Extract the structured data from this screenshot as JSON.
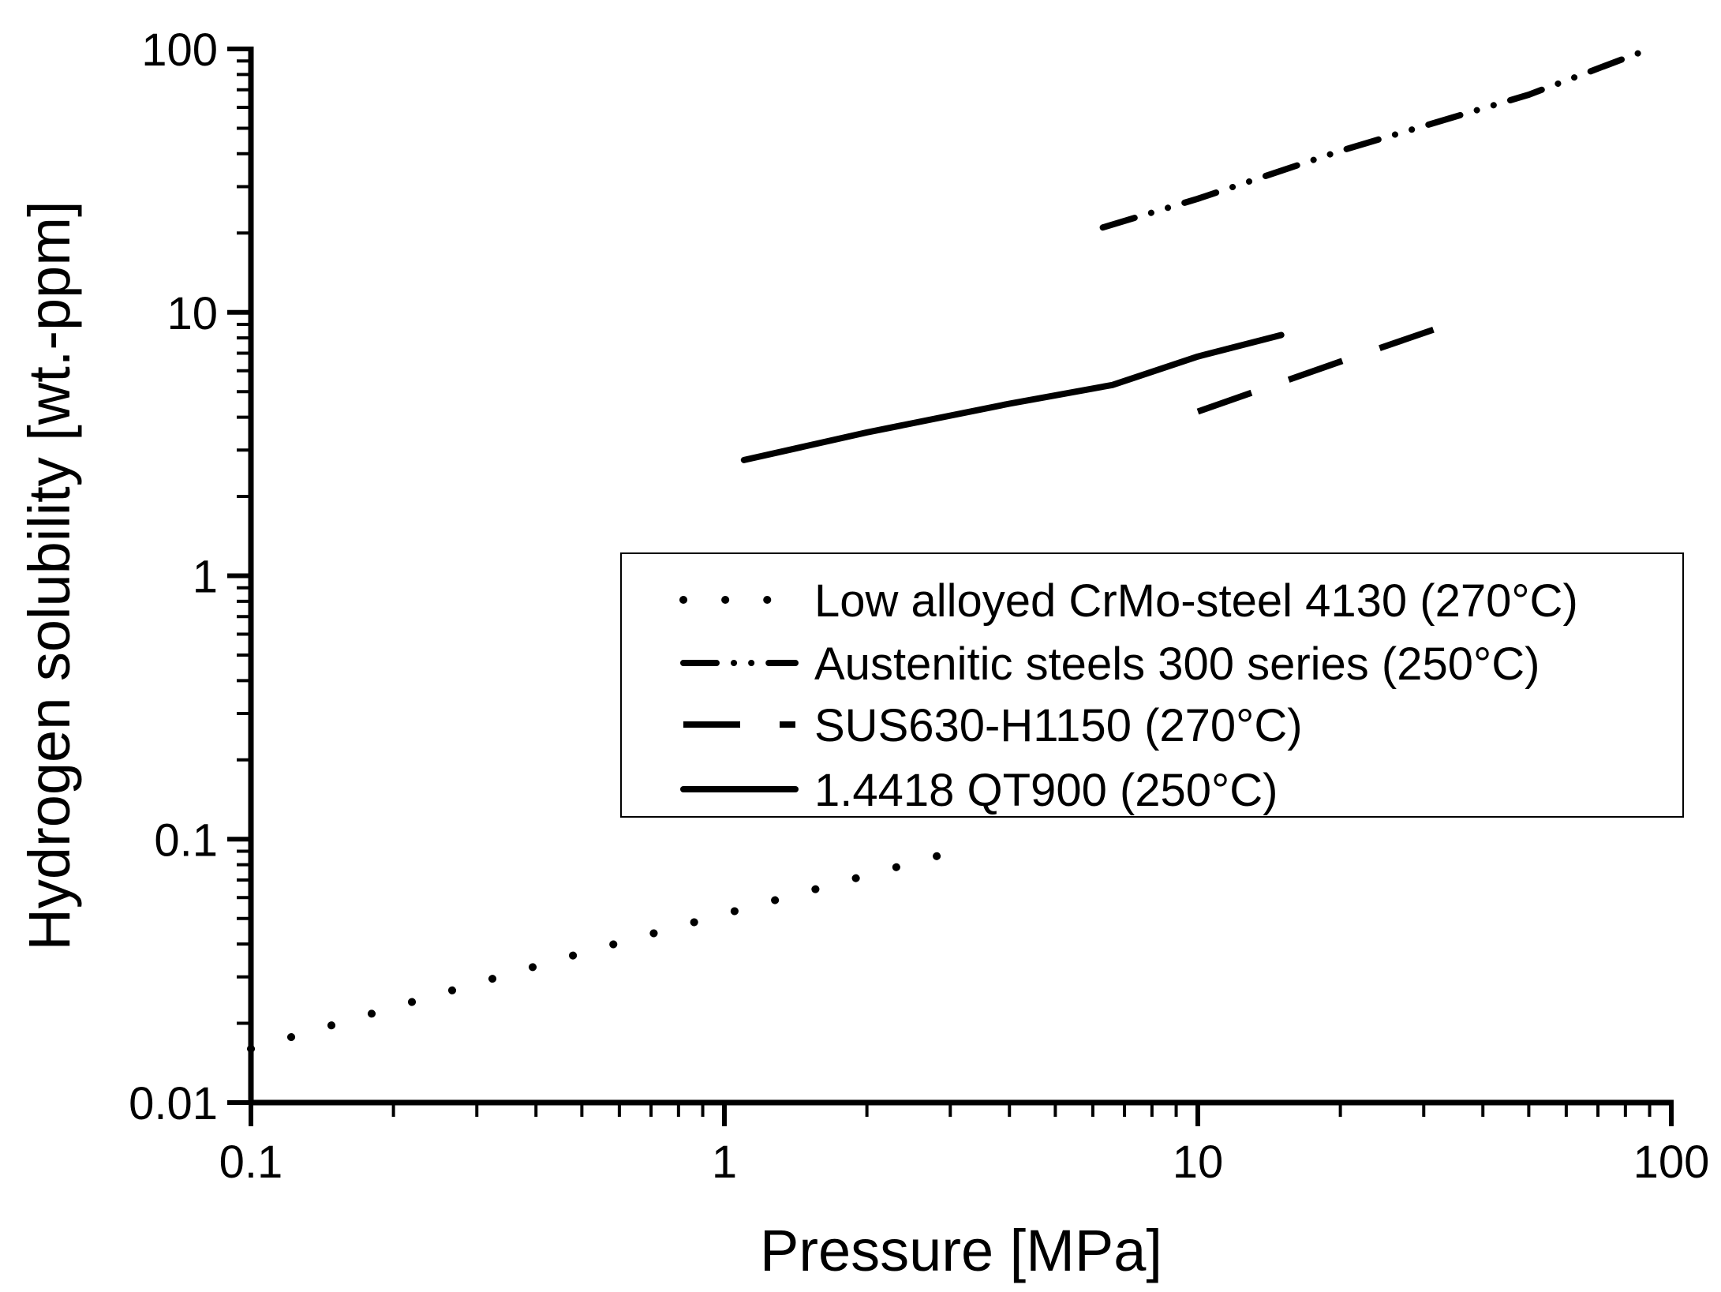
{
  "chart_data": {
    "type": "line",
    "title": "",
    "xlabel": "Pressure [MPa]",
    "ylabel": "Hydrogen solubility [wt.-ppm]",
    "xscale": "log",
    "yscale": "log",
    "xlim": [
      0.1,
      100
    ],
    "ylim": [
      0.01,
      100
    ],
    "x_ticks": [
      {
        "value": 0.1,
        "label": "0.1"
      },
      {
        "value": 1,
        "label": "1"
      },
      {
        "value": 10,
        "label": "10"
      },
      {
        "value": 100,
        "label": "100"
      }
    ],
    "y_ticks": [
      {
        "value": 0.01,
        "label": "0.01"
      },
      {
        "value": 0.1,
        "label": "0.1"
      },
      {
        "value": 1,
        "label": "1"
      },
      {
        "value": 10,
        "label": "10"
      },
      {
        "value": 100,
        "label": "100"
      }
    ],
    "grid": false,
    "legend_position": "center-right",
    "series": [
      {
        "name": "Low alloyed CrMo-steel 4130 (270°C)",
        "style": "dotted",
        "x": [
          0.1,
          0.2,
          0.5,
          1,
          2,
          3
        ],
        "y": [
          0.016,
          0.023,
          0.037,
          0.052,
          0.073,
          0.089
        ]
      },
      {
        "name": "Austenitic steels 300 series (250°C)",
        "style": "dash-dot-dot",
        "x": [
          6.3,
          10,
          20,
          50,
          90
        ],
        "y": [
          21,
          27,
          41,
          67,
          100
        ]
      },
      {
        "name": "SUS630-H1150 (270°C)",
        "style": "dashed",
        "x": [
          10,
          20,
          37
        ],
        "y": [
          4.2,
          6.5,
          9.5
        ]
      },
      {
        "name": "1.4418 QT900 (250°C)",
        "style": "solid",
        "x": [
          1.1,
          2,
          4,
          6.6,
          10,
          15
        ],
        "y": [
          2.75,
          3.5,
          4.5,
          5.3,
          6.8,
          8.2
        ]
      }
    ]
  }
}
